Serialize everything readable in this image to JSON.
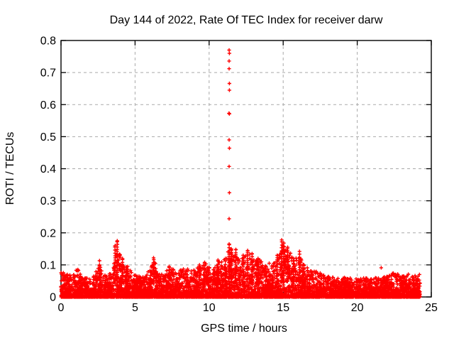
{
  "chart_data": {
    "type": "scatter",
    "title": "Day 144 of 2022, Rate Of TEC Index for receiver darw",
    "xlabel": "GPS time / hours",
    "ylabel": "ROTI / TECUs",
    "xlim": [
      0,
      25
    ],
    "ylim": [
      0,
      0.8
    ],
    "xticks": [
      0,
      5,
      10,
      15,
      20,
      25
    ],
    "xtick_labels": [
      "0",
      "5",
      "10",
      "15",
      "20",
      "25"
    ],
    "yticks": [
      0,
      0.1,
      0.2,
      0.3,
      0.4,
      0.5,
      0.6,
      0.7,
      0.8
    ],
    "ytick_labels": [
      "0",
      "0.1",
      "0.2",
      "0.3",
      "0.4",
      "0.5",
      "0.6",
      "0.7",
      "0.8"
    ],
    "grid": true,
    "legend": "none",
    "marker": "plus",
    "marker_color": "#ff0000",
    "grid_color": "#a9a9a9",
    "border_color": "#000000",
    "data_hours_range": [
      0,
      24.25
    ],
    "spike_points": [
      [
        11.35,
        0.77
      ],
      [
        11.37,
        0.76
      ],
      [
        11.35,
        0.736
      ],
      [
        11.35,
        0.712
      ],
      [
        11.37,
        0.666
      ],
      [
        11.37,
        0.645
      ],
      [
        11.34,
        0.573
      ],
      [
        11.37,
        0.571
      ],
      [
        11.35,
        0.49
      ],
      [
        11.37,
        0.464
      ],
      [
        11.35,
        0.407
      ],
      [
        11.37,
        0.325
      ],
      [
        11.35,
        0.244
      ]
    ],
    "isolated_points": [
      [
        21.62,
        0.091
      ],
      [
        24.2,
        0.07
      ],
      [
        2.6,
        0.113
      ]
    ],
    "chain_columns": [
      [
        2.6,
        0.1
      ],
      [
        3.65,
        0.16
      ],
      [
        3.8,
        0.175
      ],
      [
        4.15,
        0.12
      ],
      [
        4.5,
        0.095
      ],
      [
        6.25,
        0.122
      ],
      [
        7.3,
        0.095
      ],
      [
        9.35,
        0.1
      ],
      [
        9.7,
        0.108
      ],
      [
        10.6,
        0.115
      ],
      [
        11.1,
        0.12
      ],
      [
        11.35,
        0.165
      ],
      [
        11.5,
        0.15
      ],
      [
        11.8,
        0.148
      ],
      [
        12.3,
        0.13
      ],
      [
        12.6,
        0.145
      ],
      [
        12.9,
        0.135
      ],
      [
        13.3,
        0.12
      ],
      [
        14.6,
        0.13
      ],
      [
        14.9,
        0.178
      ],
      [
        15.05,
        0.168
      ],
      [
        15.3,
        0.155
      ],
      [
        15.7,
        0.12
      ],
      [
        16.1,
        0.142
      ],
      [
        16.4,
        0.1
      ]
    ],
    "noise_envelope": [
      [
        0.0,
        0.078
      ],
      [
        0.4,
        0.072
      ],
      [
        0.8,
        0.065
      ],
      [
        1.1,
        0.09
      ],
      [
        1.5,
        0.062
      ],
      [
        2.1,
        0.058
      ],
      [
        2.6,
        0.1
      ],
      [
        3.0,
        0.07
      ],
      [
        3.4,
        0.08
      ],
      [
        3.8,
        0.15
      ],
      [
        4.1,
        0.12
      ],
      [
        4.6,
        0.09
      ],
      [
        5.1,
        0.065
      ],
      [
        5.6,
        0.07
      ],
      [
        6.3,
        0.11
      ],
      [
        6.8,
        0.072
      ],
      [
        7.3,
        0.09
      ],
      [
        7.9,
        0.082
      ],
      [
        8.4,
        0.09
      ],
      [
        8.9,
        0.082
      ],
      [
        9.4,
        0.1
      ],
      [
        9.8,
        0.105
      ],
      [
        10.2,
        0.082
      ],
      [
        10.6,
        0.11
      ],
      [
        11.0,
        0.12
      ],
      [
        11.4,
        0.155
      ],
      [
        11.8,
        0.14
      ],
      [
        12.2,
        0.12
      ],
      [
        12.6,
        0.138
      ],
      [
        13.0,
        0.128
      ],
      [
        13.4,
        0.118
      ],
      [
        13.8,
        0.1
      ],
      [
        14.2,
        0.108
      ],
      [
        14.6,
        0.125
      ],
      [
        15.0,
        0.165
      ],
      [
        15.35,
        0.15
      ],
      [
        15.7,
        0.118
      ],
      [
        16.1,
        0.135
      ],
      [
        16.5,
        0.095
      ],
      [
        17.0,
        0.082
      ],
      [
        17.5,
        0.078
      ],
      [
        18.0,
        0.065
      ],
      [
        18.6,
        0.06
      ],
      [
        19.2,
        0.062
      ],
      [
        19.8,
        0.057
      ],
      [
        20.4,
        0.06
      ],
      [
        21.0,
        0.058
      ],
      [
        21.6,
        0.062
      ],
      [
        22.1,
        0.065
      ],
      [
        22.5,
        0.078
      ],
      [
        23.0,
        0.065
      ],
      [
        23.5,
        0.072
      ],
      [
        24.0,
        0.068
      ],
      [
        24.25,
        0.06
      ]
    ],
    "n_noise_points": 6200,
    "seed": 20220524
  }
}
